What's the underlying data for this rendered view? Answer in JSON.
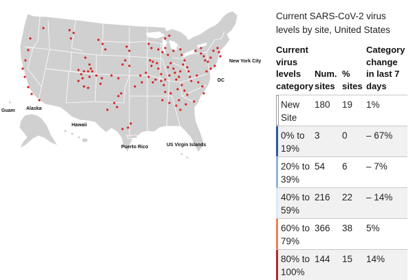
{
  "map": {
    "labels": {
      "new_york_city": "New York City",
      "dc": "DC",
      "guam": "Guam",
      "alaska": "Alaska",
      "hawaii": "Hawaii",
      "puerto_rico": "Puerto Rico",
      "us_virgin_islands": "US Virgin Islands"
    },
    "land_color": "#d0d0d0",
    "border_color": "#ffffff",
    "site_marker_color": "#d62020"
  },
  "panel": {
    "title": "Current SARS-CoV-2 virus levels by site, United States",
    "headers": {
      "category": "Current virus levels category",
      "num_sites": "Num. sites",
      "pct_sites": "% sites",
      "change": "Category change in last 7 days"
    },
    "rows": [
      {
        "category": "New Site",
        "num_sites": "180",
        "pct_sites": "19",
        "change": "1%",
        "color": "#ffffff"
      },
      {
        "category": "0% to 19%",
        "num_sites": "3",
        "pct_sites": "0",
        "change": "– 67%",
        "color": "#2e5a9c"
      },
      {
        "category": "20% to 39%",
        "num_sites": "54",
        "pct_sites": "6",
        "change": "– 7%",
        "color": "#8db4dc"
      },
      {
        "category": "40% to 59%",
        "num_sites": "216",
        "pct_sites": "22",
        "change": "– 14%",
        "color": "#d4ecf6"
      },
      {
        "category": "60% to 79%",
        "num_sites": "366",
        "pct_sites": "38",
        "change": "5%",
        "color": "#ec8050"
      },
      {
        "category": "80% to 100%",
        "num_sites": "144",
        "pct_sites": "15",
        "change": "14%",
        "color": "#b42828"
      }
    ]
  }
}
